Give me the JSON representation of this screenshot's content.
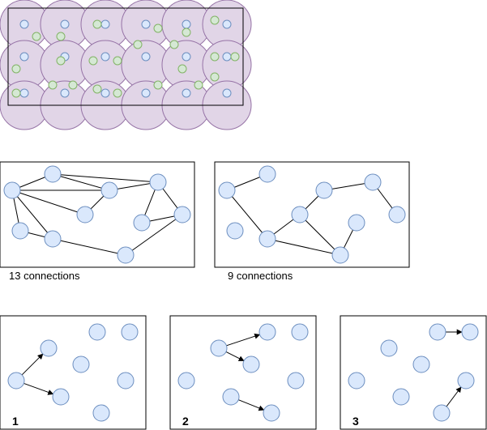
{
  "panel_grid": {
    "coverage_fill": "#e1d5e7",
    "coverage_stroke": "#9673a6",
    "blue_fill": "#dae8fc",
    "blue_stroke": "#6c8ebf",
    "green_fill": "#d5e8d4",
    "green_stroke": "#82b366"
  },
  "graph_a": {
    "caption": "13 connections",
    "node_count": 11,
    "edge_count": 13
  },
  "graph_b": {
    "caption": "9 connections",
    "node_count": 11,
    "edge_count": 9
  },
  "steps": [
    {
      "label": "1",
      "arrows": 2
    },
    {
      "label": "2",
      "arrows": 3
    },
    {
      "label": "3",
      "arrows": 2
    }
  ],
  "colors": {
    "node_fill": "#dae8fc",
    "node_stroke": "#6c8ebf",
    "line": "#000000",
    "frame": "#000000"
  }
}
